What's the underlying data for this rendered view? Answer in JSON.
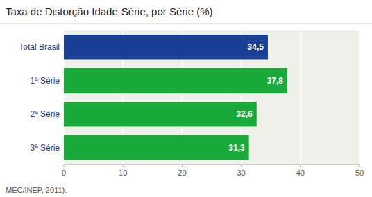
{
  "chart_data": {
    "type": "bar",
    "orientation": "horizontal",
    "title": "Taxa de Distorção Idade-Série, por Série (%)",
    "annotations": [
      "MEC/INEP, 2011)."
    ],
    "categories": [
      "3ª Série",
      "2ª Série",
      "1ª Série",
      "Total Brasil"
    ],
    "values": [
      31.3,
      32.6,
      37.8,
      34.5
    ],
    "value_labels": [
      "31,3",
      "32,6",
      "37,8",
      "34,5"
    ],
    "data_labels": true,
    "colors": [
      "#1aaa3c",
      "#1aaa3c",
      "#1aaa3c",
      "#1a4096"
    ],
    "xlim": [
      0,
      50
    ],
    "xticks": [
      0,
      10,
      20,
      30,
      40,
      50
    ],
    "grid": true
  }
}
